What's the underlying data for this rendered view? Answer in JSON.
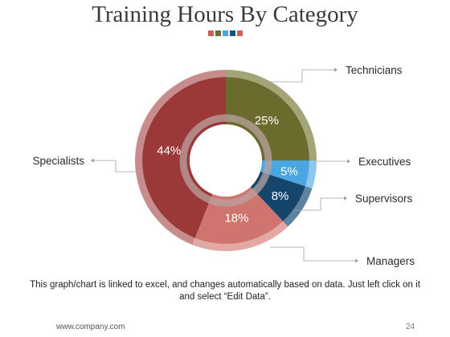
{
  "chart_data": {
    "type": "pie",
    "variant": "donut",
    "title": "Training Hours By Category",
    "categories": [
      "Technicians",
      "Executives",
      "Supervisors",
      "Managers",
      "Specialists"
    ],
    "values": [
      25,
      5,
      8,
      18,
      44
    ],
    "value_labels": [
      "25%",
      "5%",
      "8%",
      "18%",
      "44%"
    ],
    "colors": [
      "#6b6b2d",
      "#4aa5e0",
      "#16456b",
      "#d07470",
      "#9b3838"
    ],
    "outer_ring_colors": [
      "#a4a479",
      "#8cc8ee",
      "#5f82a0",
      "#e4a8a4",
      "#c98c8c"
    ],
    "legend": "callout-labels"
  },
  "decor_squares": [
    "#c9605a",
    "#6a6a3a",
    "#4aa5e0",
    "#1e4f7a",
    "#c9605a"
  ],
  "caption": "This graph/chart is linked to excel, and changes automatically based on data. Just left click on it and select “Edit Data”.",
  "footer": {
    "website": "www.company.com",
    "page_number": "24"
  }
}
